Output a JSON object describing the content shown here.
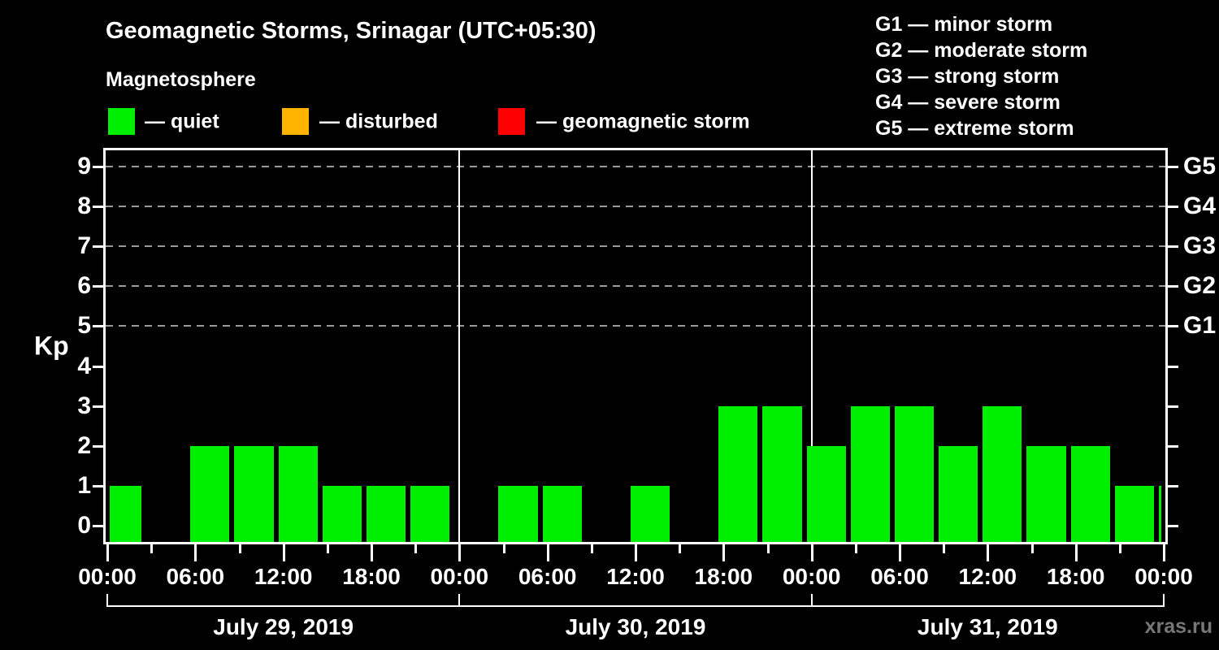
{
  "header": {
    "title": "Geomagnetic Storms, Srinagar (UTC+05:30)",
    "subtitle": "Magnetosphere"
  },
  "legend": {
    "items": [
      {
        "name": "quiet",
        "label": "— quiet",
        "color": "#00ee00"
      },
      {
        "name": "disturbed",
        "label": "— disturbed",
        "color": "#ffb400"
      },
      {
        "name": "geomagnetic-storm",
        "label": "— geomagnetic storm",
        "color": "#ff0000"
      }
    ]
  },
  "storm_scale": [
    "G1 — minor storm",
    "G2 — moderate storm",
    "G3 — strong storm",
    "G4 — severe storm",
    "G5 — extreme storm"
  ],
  "watermark": "xras.ru",
  "chart_data": {
    "type": "bar",
    "title": "Geomagnetic Storms, Srinagar (UTC+05:30)",
    "subtitle": "Magnetosphere",
    "ylabel": "Kp",
    "ylim": [
      -0.4,
      9.4
    ],
    "y_ticks": [
      0,
      1,
      2,
      3,
      4,
      5,
      6,
      7,
      8,
      9
    ],
    "grid_kp_levels": [
      5,
      6,
      7,
      8,
      9
    ],
    "right_axis": [
      {
        "kp": 5,
        "label": "G1"
      },
      {
        "kp": 6,
        "label": "G2"
      },
      {
        "kp": 7,
        "label": "G3"
      },
      {
        "kp": 8,
        "label": "G4"
      },
      {
        "kp": 9,
        "label": "G5"
      }
    ],
    "x_span_hours": 72,
    "x_major_tick_every_hours": 6,
    "x_minor_tick_every_hours": 3,
    "x_tick_labels": [
      "00:00",
      "06:00",
      "12:00",
      "18:00",
      "00:00",
      "06:00",
      "12:00",
      "18:00",
      "00:00",
      "06:00",
      "12:00",
      "18:00",
      "00:00"
    ],
    "day_boundaries_hours": [
      24,
      48
    ],
    "days": [
      {
        "label": "July 29, 2019",
        "center_hour": 12
      },
      {
        "label": "July 30, 2019",
        "center_hour": 36
      },
      {
        "label": "July 31, 2019",
        "center_hour": 60
      }
    ],
    "bar_colors": {
      "quiet": "#00ee00",
      "disturbed": "#ffb400",
      "storm": "#ff0000"
    },
    "bars": [
      {
        "start_hour": 0,
        "end_hour": 2.5,
        "kp": 1,
        "status": "quiet"
      },
      {
        "start_hour": 5.5,
        "end_hour": 8.5,
        "kp": 2,
        "status": "quiet"
      },
      {
        "start_hour": 8.5,
        "end_hour": 11.5,
        "kp": 2,
        "status": "quiet"
      },
      {
        "start_hour": 11.5,
        "end_hour": 14.5,
        "kp": 2,
        "status": "quiet"
      },
      {
        "start_hour": 14.5,
        "end_hour": 17.5,
        "kp": 1,
        "status": "quiet"
      },
      {
        "start_hour": 17.5,
        "end_hour": 20.5,
        "kp": 1,
        "status": "quiet"
      },
      {
        "start_hour": 20.5,
        "end_hour": 23.5,
        "kp": 1,
        "status": "quiet"
      },
      {
        "start_hour": 26.5,
        "end_hour": 29.5,
        "kp": 1,
        "status": "quiet"
      },
      {
        "start_hour": 29.5,
        "end_hour": 32.5,
        "kp": 1,
        "status": "quiet"
      },
      {
        "start_hour": 35.5,
        "end_hour": 38.5,
        "kp": 1,
        "status": "quiet"
      },
      {
        "start_hour": 41.5,
        "end_hour": 44.5,
        "kp": 3,
        "status": "quiet"
      },
      {
        "start_hour": 44.5,
        "end_hour": 47.5,
        "kp": 3,
        "status": "quiet"
      },
      {
        "start_hour": 47.5,
        "end_hour": 50.5,
        "kp": 2,
        "status": "quiet"
      },
      {
        "start_hour": 50.5,
        "end_hour": 53.5,
        "kp": 3,
        "status": "quiet"
      },
      {
        "start_hour": 53.5,
        "end_hour": 56.5,
        "kp": 3,
        "status": "quiet"
      },
      {
        "start_hour": 56.5,
        "end_hour": 59.5,
        "kp": 2,
        "status": "quiet"
      },
      {
        "start_hour": 59.5,
        "end_hour": 62.5,
        "kp": 3,
        "status": "quiet"
      },
      {
        "start_hour": 62.5,
        "end_hour": 65.5,
        "kp": 2,
        "status": "quiet"
      },
      {
        "start_hour": 65.5,
        "end_hour": 68.5,
        "kp": 2,
        "status": "quiet"
      },
      {
        "start_hour": 68.5,
        "end_hour": 71.5,
        "kp": 1,
        "status": "quiet"
      },
      {
        "start_hour": 71.5,
        "end_hour": 72,
        "kp": 1,
        "status": "quiet"
      }
    ]
  }
}
